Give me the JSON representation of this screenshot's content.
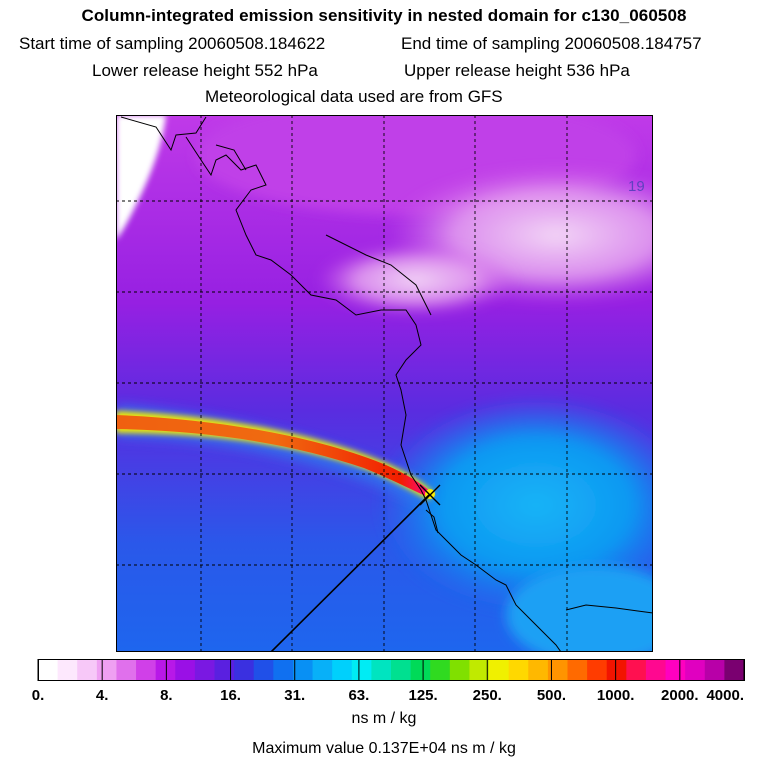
{
  "header": {
    "title": "Column-integrated emission sensitivity in nested domain for c130_060508",
    "start_label": "Start time of sampling 20060508.184622",
    "end_label": "End time of sampling 20060508.184757",
    "lower_label": "Lower release height  552 hPa",
    "upper_label": "Upper release height  536 hPa",
    "met_label": "Meteorological data used are from GFS"
  },
  "chart_data": {
    "type": "heatmap",
    "title": "Column-integrated emission sensitivity in nested domain for c130_060508",
    "sampling_start": "20060508.184622",
    "sampling_end": "20060508.184757",
    "lower_release_height_hPa": 552,
    "upper_release_height_hPa": 536,
    "met_data": "GFS",
    "map_annotation": "19",
    "colorbar": {
      "labels": [
        "0.",
        "4.",
        "8.",
        "16.",
        "31.",
        "63.",
        "125.",
        "250.",
        "500.",
        "1000.",
        "2000.",
        "4000."
      ],
      "colors": [
        "#ffffff",
        "#fde8fd",
        "#f7c8f8",
        "#efa0f2",
        "#e070ec",
        "#d040e8",
        "#b818e8",
        "#9a10e6",
        "#7a18e2",
        "#5a20e0",
        "#3a30e0",
        "#2050e8",
        "#1070f0",
        "#0890f4",
        "#08b0f8",
        "#00d0fc",
        "#00ecf4",
        "#00e4c0",
        "#00e090",
        "#00da58",
        "#30da20",
        "#80e000",
        "#c0ea00",
        "#f0f000",
        "#ffd800",
        "#ffb800",
        "#ff9400",
        "#ff6a00",
        "#ff3c00",
        "#f21400",
        "#ff1050",
        "#ff0890",
        "#ff00c0",
        "#e000c0",
        "#b800a8",
        "#7a0070"
      ],
      "unit": "ns m / kg",
      "scale": "logarithmic"
    },
    "maximum_value": 1370,
    "maximum_label": "Maximum value  0.137E+04 ns m / kg"
  }
}
